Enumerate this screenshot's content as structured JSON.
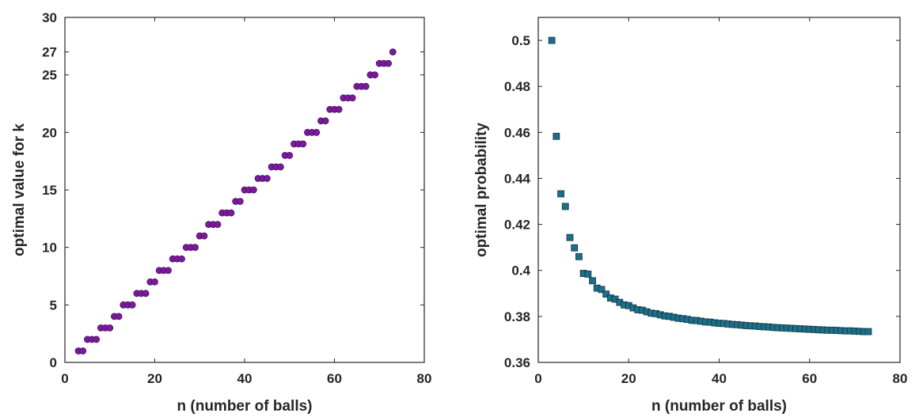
{
  "chart_data": [
    {
      "type": "scatter",
      "xlabel": "n (number of balls)",
      "ylabel": "optimal value for k",
      "xlim": [
        0,
        80
      ],
      "ylim": [
        0,
        30
      ],
      "xticks": [
        0,
        20,
        40,
        60,
        80
      ],
      "yticks": [
        0,
        5,
        10,
        15,
        20,
        25,
        27,
        30
      ],
      "grid": false,
      "marker": "circle",
      "marker_color": "#7a1a9c",
      "marker_edge": "#4a0f5f",
      "x": [
        3,
        4,
        5,
        6,
        7,
        8,
        9,
        10,
        11,
        12,
        13,
        14,
        15,
        16,
        17,
        18,
        19,
        20,
        21,
        22,
        23,
        24,
        25,
        26,
        27,
        28,
        29,
        30,
        31,
        32,
        33,
        34,
        35,
        36,
        37,
        38,
        39,
        40,
        41,
        42,
        43,
        44,
        45,
        46,
        47,
        48,
        49,
        50,
        51,
        52,
        53,
        54,
        55,
        56,
        57,
        58,
        59,
        60,
        61,
        62,
        63,
        64,
        65,
        66,
        67,
        68,
        69,
        70,
        71,
        72,
        73
      ],
      "y": [
        1,
        1,
        2,
        2,
        2,
        3,
        3,
        3,
        4,
        4,
        5,
        5,
        5,
        6,
        6,
        6,
        7,
        7,
        8,
        8,
        8,
        9,
        9,
        9,
        10,
        10,
        10,
        11,
        11,
        12,
        12,
        12,
        13,
        13,
        13,
        14,
        14,
        15,
        15,
        15,
        16,
        16,
        16,
        17,
        17,
        17,
        18,
        18,
        19,
        19,
        19,
        20,
        20,
        20,
        21,
        21,
        22,
        22,
        22,
        23,
        23,
        23,
        24,
        24,
        24,
        25,
        25,
        26,
        26,
        26,
        27
      ]
    },
    {
      "type": "scatter",
      "xlabel": "n (number of balls)",
      "ylabel": "optimal probability",
      "xlim": [
        0,
        80
      ],
      "ylim": [
        0.36,
        0.51
      ],
      "xticks": [
        0,
        20,
        40,
        60,
        80
      ],
      "yticks": [
        0.36,
        0.38,
        0.4,
        0.42,
        0.44,
        0.46,
        0.48,
        0.5
      ],
      "ytick_labels": [
        "0.36",
        "0.38",
        "0.4",
        "0.42",
        "0.44",
        "0.46",
        "0.48",
        "0.5"
      ],
      "grid": false,
      "marker": "square",
      "marker_color": "#1f6e87",
      "marker_edge": "#0e3a4a",
      "x": [
        3,
        4,
        5,
        6,
        7,
        8,
        9,
        10,
        11,
        12,
        13,
        14,
        15,
        16,
        17,
        18,
        19,
        20,
        21,
        22,
        23,
        24,
        25,
        26,
        27,
        28,
        29,
        30,
        31,
        32,
        33,
        34,
        35,
        36,
        37,
        38,
        39,
        40,
        41,
        42,
        43,
        44,
        45,
        46,
        47,
        48,
        49,
        50,
        51,
        52,
        53,
        54,
        55,
        56,
        57,
        58,
        59,
        60,
        61,
        62,
        63,
        64,
        65,
        66,
        67,
        68,
        69,
        70,
        71,
        72,
        73
      ],
      "y": [
        0.5,
        0.4583,
        0.4333,
        0.4278,
        0.4143,
        0.4098,
        0.406,
        0.3987,
        0.3984,
        0.3955,
        0.3923,
        0.3917,
        0.3897,
        0.388,
        0.3875,
        0.3861,
        0.385,
        0.3847,
        0.3837,
        0.3829,
        0.3827,
        0.382,
        0.3814,
        0.3812,
        0.3807,
        0.3802,
        0.38,
        0.3796,
        0.3792,
        0.379,
        0.3787,
        0.3783,
        0.3782,
        0.3779,
        0.3776,
        0.3775,
        0.3772,
        0.377,
        0.3769,
        0.3767,
        0.3765,
        0.3764,
        0.3762,
        0.376,
        0.3759,
        0.3758,
        0.3756,
        0.3755,
        0.3754,
        0.3752,
        0.3751,
        0.375,
        0.3749,
        0.3748,
        0.3747,
        0.3746,
        0.3745,
        0.3744,
        0.3743,
        0.3742,
        0.3741,
        0.374,
        0.374,
        0.3739,
        0.3738,
        0.3737,
        0.3737,
        0.3736,
        0.3735,
        0.3734,
        0.3734
      ]
    }
  ]
}
